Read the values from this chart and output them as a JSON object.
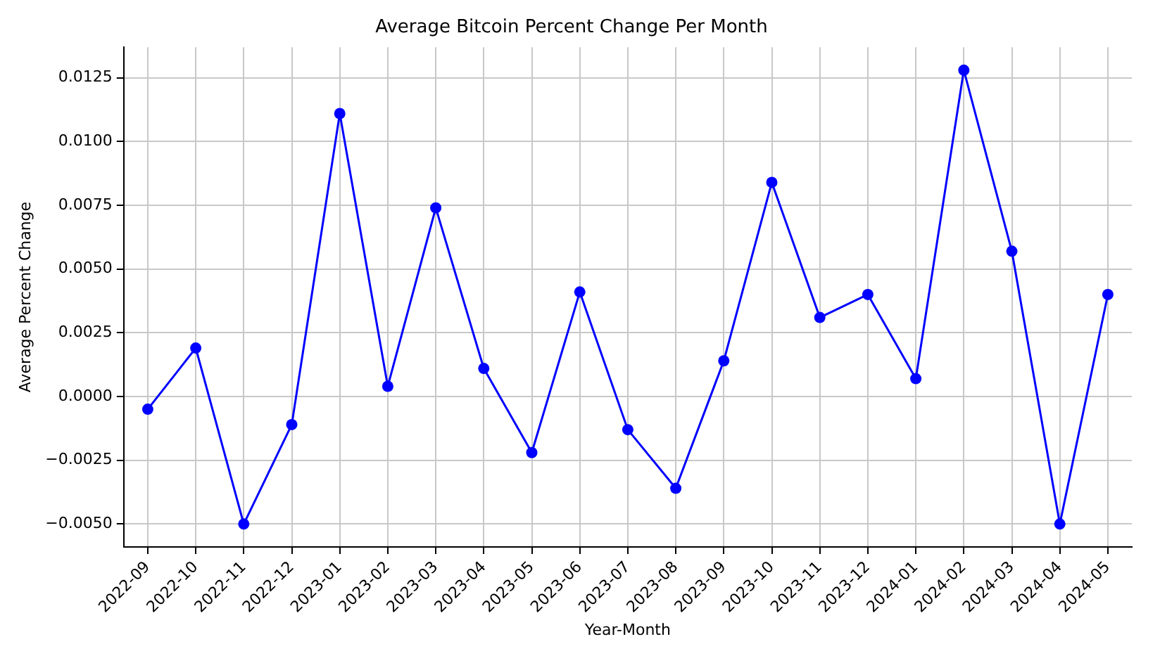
{
  "chart_data": {
    "type": "line",
    "title": "Average Bitcoin Percent Change Per Month",
    "xlabel": "Year-Month",
    "ylabel": "Average Percent Change",
    "categories": [
      "2022-09",
      "2022-10",
      "2022-11",
      "2022-12",
      "2023-01",
      "2023-02",
      "2023-03",
      "2023-04",
      "2023-05",
      "2023-06",
      "2023-07",
      "2023-08",
      "2023-09",
      "2023-10",
      "2023-11",
      "2023-12",
      "2024-01",
      "2024-02",
      "2024-03",
      "2024-04",
      "2024-05"
    ],
    "series": [
      {
        "color": "#0000ff",
        "values": [
          -0.0005,
          0.0019,
          -0.005,
          -0.0011,
          0.0111,
          0.0004,
          0.0074,
          0.0011,
          -0.0022,
          0.0041,
          -0.0013,
          -0.0036,
          0.0014,
          0.0084,
          0.0031,
          0.004,
          0.0007,
          0.0128,
          0.0057,
          -0.005,
          0.004
        ]
      }
    ],
    "ylim": [
      -0.0059,
      0.0137
    ],
    "yticks": [
      {
        "value": -0.005,
        "label": "−0.0050"
      },
      {
        "value": -0.0025,
        "label": "−0.0025"
      },
      {
        "value": 0,
        "label": "0.0000"
      },
      {
        "value": 0.0025,
        "label": "0.0025"
      },
      {
        "value": 0.005,
        "label": "0.0050"
      },
      {
        "value": 0.0075,
        "label": "0.0075"
      },
      {
        "value": 0.01,
        "label": "0.0100"
      },
      {
        "value": 0.0125,
        "label": "0.0125"
      }
    ],
    "grid": true,
    "marker": "circle",
    "line_style": "solid"
  }
}
